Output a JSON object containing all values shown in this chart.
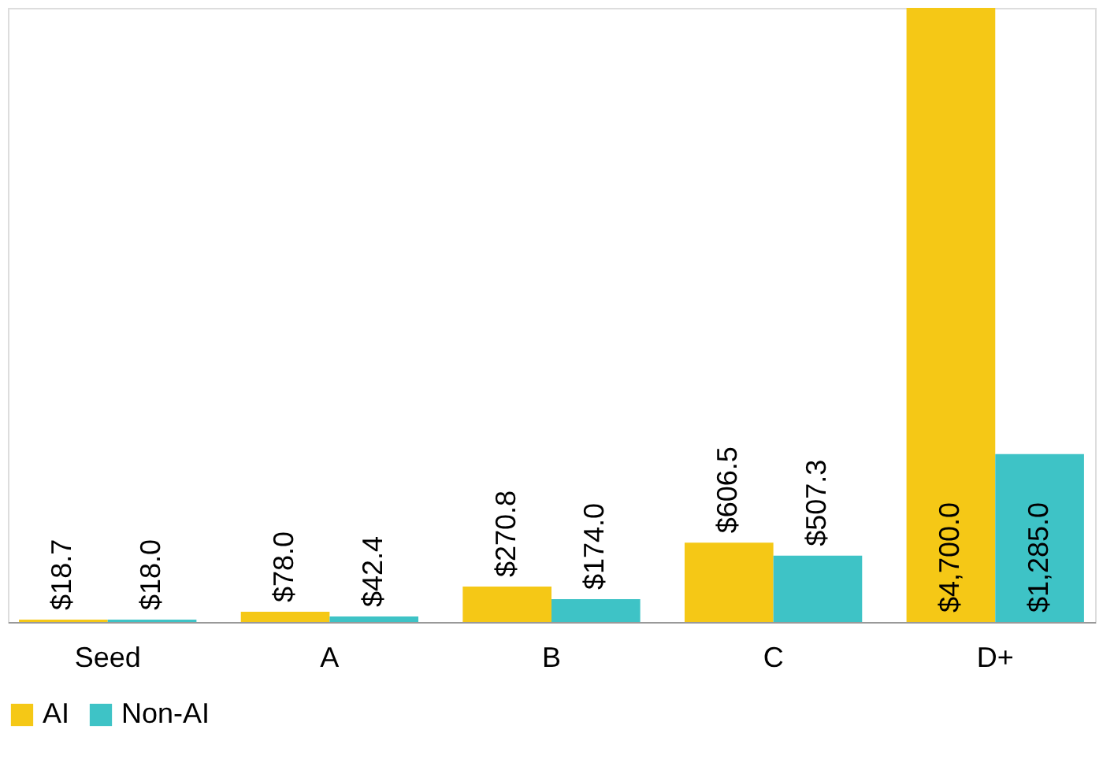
{
  "chart_data": {
    "type": "bar",
    "categories": [
      "Seed",
      "A",
      "B",
      "C",
      "D+"
    ],
    "series": [
      {
        "name": "AI",
        "color": "#f5c816",
        "values": [
          18.7,
          78.0,
          270.8,
          606.5,
          4700.0
        ],
        "value_labels": [
          "$18.7",
          "$78.0",
          "$270.8",
          "$606.5",
          "$4,700.0"
        ]
      },
      {
        "name": "Non-AI",
        "color": "#3ec3c6",
        "values": [
          18.0,
          42.4,
          174.0,
          507.3,
          1285.0
        ],
        "value_labels": [
          "$18.0",
          "$42.4",
          "$174.0",
          "$507.3",
          "$1,285.0"
        ]
      }
    ],
    "legend": "bottom",
    "grid": false
  }
}
